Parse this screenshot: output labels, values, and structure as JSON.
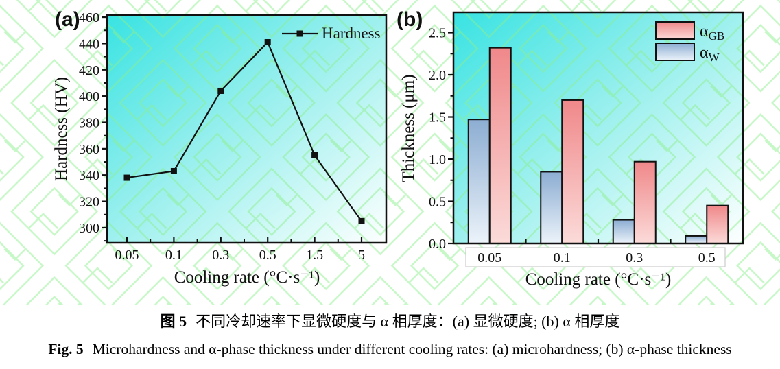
{
  "caption": {
    "zh_prefix": "图 5",
    "zh_text": "不同冷却速率下显微硬度与 α 相厚度：(a) 显微硬度; (b) α 相厚度",
    "en_prefix": "Fig. 5",
    "en_text": "Microhardness and α-phase thickness under different cooling rates: (a) microhardness; (b) α-phase thickness"
  },
  "colors": {
    "plot_bg_start": "#38e3e2",
    "plot_bg_mid": "#8feeec",
    "plot_bg_end": "#fdfffe",
    "bar_red_top": "#f0888a",
    "bar_red_bottom": "#fbdbd9",
    "bar_blue_top": "#8cadd2",
    "bar_blue_bottom": "#ecf3fa",
    "ink": "#111111",
    "watermark_green": "#8cee8c",
    "label_box_border": "#cccccc"
  },
  "chart_data": [
    {
      "id": "a",
      "panel": "(a)",
      "type": "line",
      "categories": [
        "0.05",
        "0.1",
        "0.3",
        "0.5",
        "1.5",
        "5"
      ],
      "series": [
        {
          "name": "Hardness",
          "marker": "square",
          "color": "#111111",
          "values": [
            338,
            343,
            404,
            441,
            355,
            305
          ]
        }
      ],
      "xlabel": "Cooling rate (°C·s⁻¹)",
      "ylabel": "Hardness (HV)",
      "ylim": [
        288.5,
        461.6
      ],
      "yticks": [
        300,
        320,
        340,
        360,
        380,
        400,
        420,
        440,
        460
      ],
      "ytick_labels": [
        "300",
        "320",
        "340",
        "360",
        "380",
        "400",
        "420",
        "440",
        "460"
      ],
      "ytick_minor_step": 10,
      "grid": false,
      "legend_position": "top-right-inside"
    },
    {
      "id": "b",
      "panel": "(b)",
      "type": "bar",
      "categories": [
        "0.05",
        "0.1",
        "0.3",
        "0.5"
      ],
      "series": [
        {
          "name": "α_W",
          "symbol": "α",
          "subscript": "W",
          "gradient": "barBlue",
          "values": [
            1.47,
            0.85,
            0.28,
            0.09
          ]
        },
        {
          "name": "α_GB",
          "symbol": "α",
          "subscript": "GB",
          "gradient": "barRed",
          "values": [
            2.32,
            1.7,
            0.97,
            0.45
          ]
        }
      ],
      "legend_entries": [
        {
          "symbol": "α",
          "subscript": "GB",
          "gradient": "barRed"
        },
        {
          "symbol": "α",
          "subscript": "W",
          "gradient": "barBlue"
        }
      ],
      "xlabel": "Cooling rate (°C·s⁻¹)",
      "ylabel": "Thickness (μm)",
      "ylim": [
        0,
        2.74
      ],
      "yticks": [
        0,
        0.5,
        1,
        1.5,
        2,
        2.5
      ],
      "ytick_labels": [
        "0.0",
        "0.5",
        "1.0",
        "1.5",
        "2.0",
        "2.5"
      ],
      "ytick_minor_step": 0.25,
      "grid": false,
      "legend_position": "top-right-inside"
    }
  ]
}
